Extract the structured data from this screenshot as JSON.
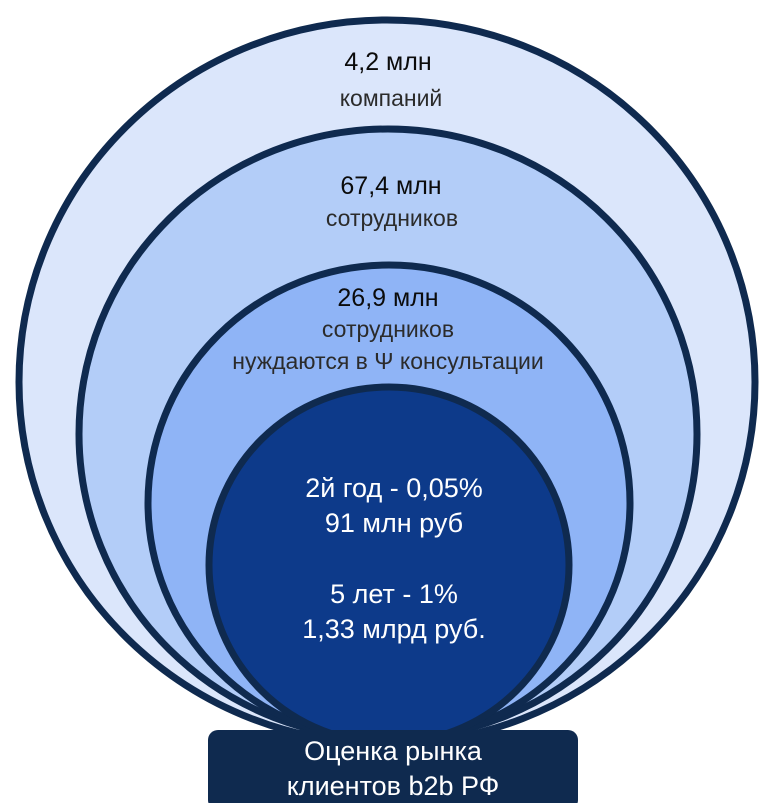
{
  "colors": {
    "outline": "#0f2a4f",
    "level1_fill": "#dbe6fb",
    "level2_fill": "#b3cdf8",
    "level3_fill": "#8fb4f6",
    "core_fill": "#0d3a8a",
    "caption_fill": "#0f2a4f"
  },
  "levels": [
    {
      "value": "4,2 млн",
      "label": "компаний"
    },
    {
      "value": "67,4 млн",
      "label": "сотрудников"
    },
    {
      "value": "26,9 млн",
      "label_line1": "сотрудников",
      "label_line2": "нуждаются в Ψ консультации"
    }
  ],
  "core": {
    "line1": "2й год - 0,05%",
    "line2": "91 млн руб",
    "line3": "5 лет - 1%",
    "line4": "1,33 млрд руб."
  },
  "caption": {
    "line1": "Оценка рынка",
    "line2": "клиентов b2b РФ"
  }
}
